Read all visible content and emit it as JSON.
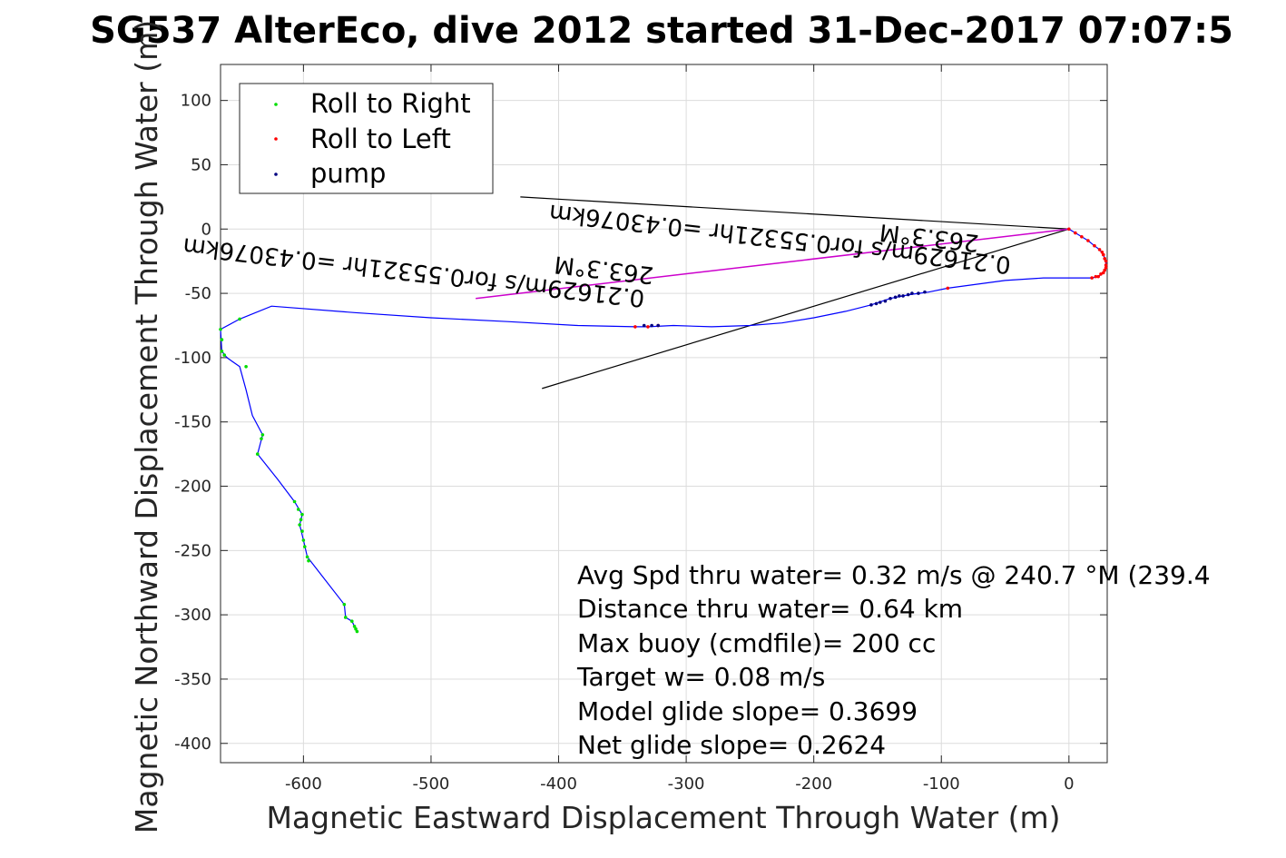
{
  "chart_data": {
    "type": "line",
    "title": "SG537 AlterEco, dive 2012 started 31-Dec-2017 07:07:5",
    "xlabel": "Magnetic Eastward Displacement Through Water (m)",
    "ylabel": "Magnetic Northward Displacement Through Water (m)",
    "xlim": [
      -665,
      30
    ],
    "ylim": [
      -415,
      128
    ],
    "xticks": [
      -600,
      -500,
      -400,
      -300,
      -200,
      -100,
      0
    ],
    "yticks": [
      100,
      50,
      0,
      -50,
      -100,
      -150,
      -200,
      -250,
      -300,
      -350,
      -400
    ],
    "grid": true,
    "legend_position": "top-left",
    "legend": [
      "Roll to Right",
      "Roll to Left",
      "pump"
    ],
    "colors": {
      "track": "#0000ff",
      "roll_right": "#00dd00",
      "roll_left": "#ff0000",
      "pump": "#000080",
      "vector": "#000000",
      "current": "#cc00cc"
    },
    "track": [
      [
        0,
        0
      ],
      [
        5,
        -3
      ],
      [
        10,
        -6
      ],
      [
        15,
        -9
      ],
      [
        20,
        -13
      ],
      [
        24,
        -16
      ],
      [
        27,
        -20
      ],
      [
        29,
        -25
      ],
      [
        29,
        -30
      ],
      [
        27,
        -34
      ],
      [
        23,
        -37
      ],
      [
        18,
        -38
      ],
      [
        10,
        -38
      ],
      [
        0,
        -38
      ],
      [
        -20,
        -38
      ],
      [
        -50,
        -40
      ],
      [
        -95,
        -46
      ],
      [
        -110,
        -49
      ],
      [
        -125,
        -51
      ],
      [
        -140,
        -54
      ],
      [
        -155,
        -59
      ],
      [
        -175,
        -64
      ],
      [
        -200,
        -69
      ],
      [
        -225,
        -73
      ],
      [
        -250,
        -75
      ],
      [
        -280,
        -76
      ],
      [
        -310,
        -75
      ],
      [
        -330,
        -76
      ],
      [
        -340,
        -76
      ],
      [
        -385,
        -75
      ],
      [
        -440,
        -72
      ],
      [
        -500,
        -69
      ],
      [
        -560,
        -65
      ],
      [
        -625,
        -60
      ],
      [
        -650,
        -70
      ],
      [
        -665,
        -78
      ],
      [
        -664,
        -95
      ],
      [
        -660,
        -100
      ],
      [
        -650,
        -107
      ],
      [
        -645,
        -125
      ],
      [
        -640,
        -145
      ],
      [
        -632,
        -160
      ],
      [
        -636,
        -175
      ],
      [
        -620,
        -195
      ],
      [
        -607,
        -212
      ],
      [
        -601,
        -222
      ],
      [
        -603,
        -230
      ],
      [
        -600,
        -242
      ],
      [
        -597,
        -255
      ],
      [
        -568,
        -292
      ],
      [
        -567,
        -302
      ],
      [
        -562,
        -305
      ],
      [
        -558,
        -313
      ]
    ],
    "roll_right_points": [
      [
        -665,
        -78
      ],
      [
        -664,
        -86
      ],
      [
        -664,
        -95
      ],
      [
        -662,
        -98
      ],
      [
        -650,
        -70
      ],
      [
        -645,
        -107
      ],
      [
        -632,
        -160
      ],
      [
        -633,
        -163
      ],
      [
        -636,
        -175
      ],
      [
        -607,
        -212
      ],
      [
        -604,
        -218
      ],
      [
        -601,
        -222
      ],
      [
        -602,
        -226
      ],
      [
        -603,
        -230
      ],
      [
        -601,
        -235
      ],
      [
        -600,
        -242
      ],
      [
        -599,
        -247
      ],
      [
        -597,
        -255
      ],
      [
        -596,
        -258
      ],
      [
        -568,
        -292
      ],
      [
        -567,
        -302
      ],
      [
        -562,
        -305
      ],
      [
        -560,
        -309
      ],
      [
        -559,
        -311
      ],
      [
        -558,
        -313
      ]
    ],
    "roll_left_points": [
      [
        0,
        0
      ],
      [
        5,
        -3
      ],
      [
        10,
        -6
      ],
      [
        15,
        -9
      ],
      [
        20,
        -13
      ],
      [
        24,
        -16
      ],
      [
        26,
        -18
      ],
      [
        27,
        -20
      ],
      [
        28,
        -23
      ],
      [
        29,
        -25
      ],
      [
        29,
        -28
      ],
      [
        29,
        -30
      ],
      [
        28,
        -32
      ],
      [
        27,
        -34
      ],
      [
        25,
        -35
      ],
      [
        23,
        -37
      ],
      [
        21,
        -37
      ],
      [
        18,
        -38
      ],
      [
        -95,
        -46
      ],
      [
        -322,
        -75
      ],
      [
        -330,
        -76
      ],
      [
        -340,
        -76
      ]
    ],
    "pump_points": [
      [
        -113,
        -49
      ],
      [
        -118,
        -50
      ],
      [
        -123,
        -50
      ],
      [
        -126,
        -51
      ],
      [
        -130,
        -52
      ],
      [
        -133,
        -52
      ],
      [
        -136,
        -53
      ],
      [
        -140,
        -54
      ],
      [
        -144,
        -56
      ],
      [
        -148,
        -57
      ],
      [
        -151,
        -58
      ],
      [
        -155,
        -59
      ],
      [
        -322,
        -75
      ],
      [
        -327,
        -75
      ],
      [
        -333,
        -75
      ]
    ],
    "current_line": [
      [
        -465,
        -54
      ],
      [
        0,
        0
      ]
    ],
    "heading_lines": [
      [
        [
          -430,
          25
        ],
        [
          0,
          0
        ]
      ],
      [
        [
          -413,
          -124
        ],
        [
          0,
          0
        ]
      ]
    ],
    "annotations": [
      {
        "text": "263.3°M",
        "x": -70,
        "y": -5,
        "angle": 186.5
      },
      {
        "text": "0.21629m/s for0.55321hr =0.43076km",
        "x": -45,
        "y": -22,
        "angle": 186.5
      },
      {
        "text": "263.3°M",
        "x": -325,
        "y": -30,
        "angle": 186.5
      },
      {
        "text": "0.21629m/s for0.55321hr =0.43076km",
        "x": -332,
        "y": -48,
        "angle": 186.5
      }
    ],
    "stats": [
      "Avg Spd thru water=  0.32 m/s @ 240.7 °M (239.4",
      "Distance thru water=  0.64 km",
      "Max buoy (cmdfile)= 200 cc",
      "Target w= 0.08 m/s",
      "Model glide slope= 0.3699",
      "Net glide slope= 0.2624"
    ]
  }
}
